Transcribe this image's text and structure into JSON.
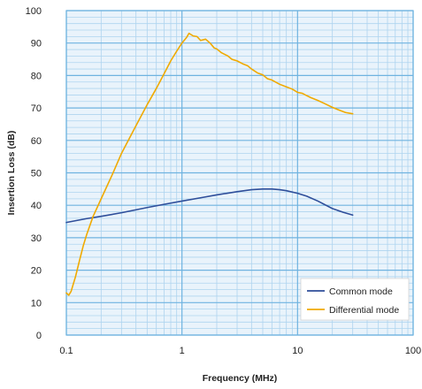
{
  "chart_data": {
    "type": "line",
    "xlabel": "Frequency (MHz)",
    "ylabel": "Insertion Loss (dB)",
    "x_scale": "log",
    "xlim": [
      0.1,
      100
    ],
    "ylim": [
      0,
      100
    ],
    "x_ticks": [
      0.1,
      1,
      10,
      100
    ],
    "x_tick_labels": [
      "0.1",
      "1",
      "10",
      "100"
    ],
    "y_ticks": [
      0,
      10,
      20,
      30,
      40,
      50,
      60,
      70,
      80,
      90,
      100
    ],
    "y_tick_labels": [
      "0",
      "10",
      "20",
      "30",
      "40",
      "50",
      "60",
      "70",
      "80",
      "90",
      "100"
    ],
    "grid": true,
    "legend_position": "bottom-right",
    "colors": {
      "background": "#ffffff",
      "plot_background": "#e9f3fb",
      "grid_major": "#6fb3e0",
      "grid_minor": "#aed4ef",
      "common_mode": "#2e4e9a",
      "differential_mode": "#f0aa00"
    },
    "series": [
      {
        "name": "Common mode",
        "color": "#2e4e9a",
        "points": [
          [
            0.1,
            34.7
          ],
          [
            0.15,
            35.9
          ],
          [
            0.2,
            36.6
          ],
          [
            0.3,
            37.7
          ],
          [
            0.5,
            39.3
          ],
          [
            0.7,
            40.3
          ],
          [
            1,
            41.3
          ],
          [
            1.5,
            42.4
          ],
          [
            2,
            43.2
          ],
          [
            3,
            44.2
          ],
          [
            4,
            44.8
          ],
          [
            5,
            45.0
          ],
          [
            6,
            45.0
          ],
          [
            7,
            44.8
          ],
          [
            8,
            44.5
          ],
          [
            10,
            43.7
          ],
          [
            12,
            42.8
          ],
          [
            15,
            41.3
          ],
          [
            20,
            39.0
          ],
          [
            25,
            37.8
          ],
          [
            30,
            37.0
          ]
        ]
      },
      {
        "name": "Differential mode",
        "color": "#f0aa00",
        "points": [
          [
            0.1,
            13.0
          ],
          [
            0.105,
            12.3
          ],
          [
            0.11,
            13.5
          ],
          [
            0.12,
            18.0
          ],
          [
            0.13,
            23.0
          ],
          [
            0.14,
            27.5
          ],
          [
            0.15,
            31.0
          ],
          [
            0.17,
            36.5
          ],
          [
            0.2,
            42.0
          ],
          [
            0.25,
            49.5
          ],
          [
            0.3,
            56.0
          ],
          [
            0.4,
            64.5
          ],
          [
            0.5,
            71.0
          ],
          [
            0.6,
            76.0
          ],
          [
            0.7,
            80.5
          ],
          [
            0.8,
            84.5
          ],
          [
            0.9,
            87.5
          ],
          [
            1.0,
            90.0
          ],
          [
            1.1,
            91.8
          ],
          [
            1.15,
            93.0
          ],
          [
            1.25,
            92.2
          ],
          [
            1.35,
            92.0
          ],
          [
            1.45,
            90.8
          ],
          [
            1.6,
            91.2
          ],
          [
            1.75,
            90.0
          ],
          [
            1.9,
            88.5
          ],
          [
            2.0,
            88.2
          ],
          [
            2.2,
            87.0
          ],
          [
            2.5,
            86.0
          ],
          [
            2.7,
            85.0
          ],
          [
            3.0,
            84.5
          ],
          [
            3.4,
            83.5
          ],
          [
            3.7,
            83.0
          ],
          [
            4.0,
            82.0
          ],
          [
            4.5,
            80.8
          ],
          [
            5.0,
            80.2
          ],
          [
            5.5,
            79.0
          ],
          [
            6.0,
            78.6
          ],
          [
            7.0,
            77.3
          ],
          [
            8.0,
            76.5
          ],
          [
            9.0,
            75.8
          ],
          [
            10,
            74.8
          ],
          [
            11,
            74.5
          ],
          [
            12,
            73.8
          ],
          [
            13,
            73.2
          ],
          [
            15,
            72.3
          ],
          [
            17,
            71.4
          ],
          [
            20,
            70.2
          ],
          [
            23,
            69.3
          ],
          [
            26,
            68.6
          ],
          [
            30,
            68.2
          ]
        ]
      }
    ]
  }
}
